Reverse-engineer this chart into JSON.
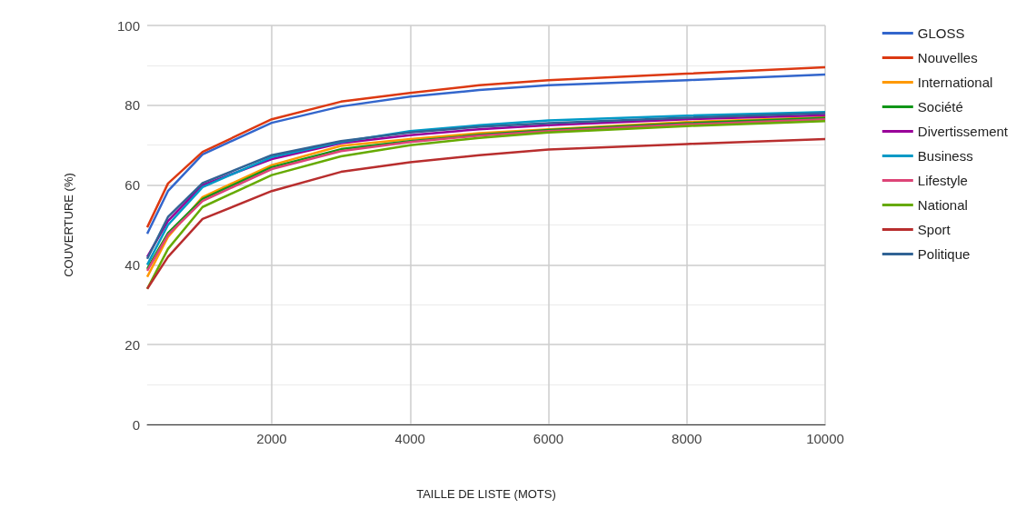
{
  "chart_data": {
    "type": "line",
    "xlabel": "TAILLE DE LISTE (MOTS)",
    "ylabel": "COUVERTURE (%)",
    "x": [
      200,
      500,
      1000,
      2000,
      3000,
      4000,
      5000,
      6000,
      8000,
      10000
    ],
    "xlim": [
      200,
      10000
    ],
    "xticks": [
      2000,
      4000,
      6000,
      8000,
      10000
    ],
    "ylim": [
      0,
      100
    ],
    "yticks": [
      0,
      20,
      40,
      60,
      80,
      100
    ],
    "grid": true,
    "legend": "right",
    "marker": "none",
    "line_style": "solid",
    "series": [
      {
        "name": "GLOSS",
        "color": "#3366cc",
        "values": [
          47.8,
          58.5,
          67.7,
          75.6,
          79.7,
          82.2,
          83.8,
          85,
          86.3,
          87.7
        ]
      },
      {
        "name": "Nouvelles",
        "color": "#dc3912",
        "values": [
          49.4,
          60.4,
          68.3,
          76.5,
          80.9,
          83.1,
          85,
          86.3,
          87.9,
          89.5
        ]
      },
      {
        "name": "International",
        "color": "#ff9900",
        "values": [
          37,
          47,
          57,
          65,
          69.8,
          71.5,
          73,
          74,
          75.8,
          77
        ]
      },
      {
        "name": "Société",
        "color": "#109618",
        "values": [
          39,
          48,
          56.5,
          64.5,
          69,
          71,
          72.6,
          73.8,
          75.5,
          76.8
        ]
      },
      {
        "name": "Divertissement",
        "color": "#990099",
        "values": [
          42,
          51,
          60,
          66.5,
          70.5,
          72.5,
          74,
          75,
          76.5,
          77.5
        ]
      },
      {
        "name": "Business",
        "color": "#0099c6",
        "values": [
          40,
          50,
          59.5,
          67,
          70.8,
          73.5,
          75,
          76.2,
          77.4,
          78.3
        ]
      },
      {
        "name": "Lifestyle",
        "color": "#dd4477",
        "values": [
          38.5,
          47.5,
          56,
          64,
          68.5,
          70.8,
          72.4,
          73.5,
          75.2,
          76.5
        ]
      },
      {
        "name": "National",
        "color": "#66aa00",
        "values": [
          34,
          44,
          54.5,
          62.5,
          67.2,
          70,
          71.8,
          73.2,
          74.8,
          76
        ]
      },
      {
        "name": "Sport",
        "color": "#b82e2e",
        "values": [
          34,
          42,
          51.5,
          58.5,
          63.3,
          65.7,
          67.5,
          68.9,
          70.3,
          71.5
        ]
      },
      {
        "name": "Politique",
        "color": "#316395",
        "values": [
          41.5,
          52,
          60.5,
          67.5,
          71,
          73.2,
          74.6,
          75.5,
          76.9,
          78
        ]
      }
    ]
  }
}
